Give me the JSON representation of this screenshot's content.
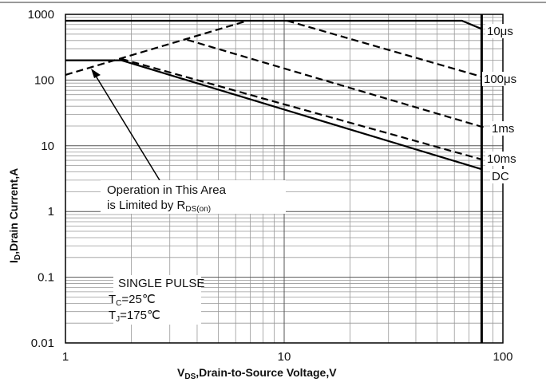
{
  "chart_data": {
    "type": "line",
    "xlabel": {
      "main": "V",
      "sub": "DS",
      "rest": ",Drain-to-Source Voltage,V"
    },
    "ylabel": {
      "main": "I",
      "sub": "D",
      "rest": ",Drain Current,A"
    },
    "xscale": "log",
    "yscale": "log",
    "grid": true,
    "xlim": [
      1,
      100
    ],
    "xticks": [
      1,
      10,
      100
    ],
    "ylim": [
      0.01,
      1000
    ],
    "yticks": [
      0.01,
      0.1,
      1,
      10,
      100,
      1000
    ],
    "series": [
      {
        "name": "10μs",
        "color": "#000000",
        "dash": false,
        "x": [
          1,
          65,
          80
        ],
        "values": [
          800,
          800,
          600
        ]
      },
      {
        "name": "100μs",
        "color": "#000000",
        "dash": true,
        "x": [
          10.3,
          82
        ],
        "values": [
          800,
          110
        ]
      },
      {
        "name": "1ms",
        "color": "#000000",
        "dash": true,
        "x": [
          3.6,
          82
        ],
        "values": [
          410,
          19
        ]
      },
      {
        "name": "10ms",
        "color": "#000000",
        "dash": true,
        "x": [
          1.8,
          80
        ],
        "values": [
          210,
          6.2
        ]
      },
      {
        "name": "DC",
        "color": "#000000",
        "dash": false,
        "x": [
          1,
          1.8,
          80
        ],
        "values": [
          200,
          200,
          4.4
        ]
      },
      {
        "color": "#000000",
        "dash": true,
        "x": [
          1,
          6.8
        ],
        "values": [
          120,
          800
        ]
      },
      {
        "color": "#000000",
        "dash": false,
        "x": [
          80,
          80
        ],
        "values": [
          0.01,
          1000
        ]
      }
    ],
    "annotations": [
      {
        "lines": [
          "Operation in This Area",
          "is Limited by R"
        ],
        "sub": "DS(on)"
      },
      {
        "lines": [
          "SINGLE PULSE"
        ],
        "rows": [
          {
            "main": "T",
            "sub": "C",
            "rest": "=25℃"
          },
          {
            "main": "T",
            "sub": "J",
            "rest": "=175℃"
          }
        ]
      }
    ]
  }
}
